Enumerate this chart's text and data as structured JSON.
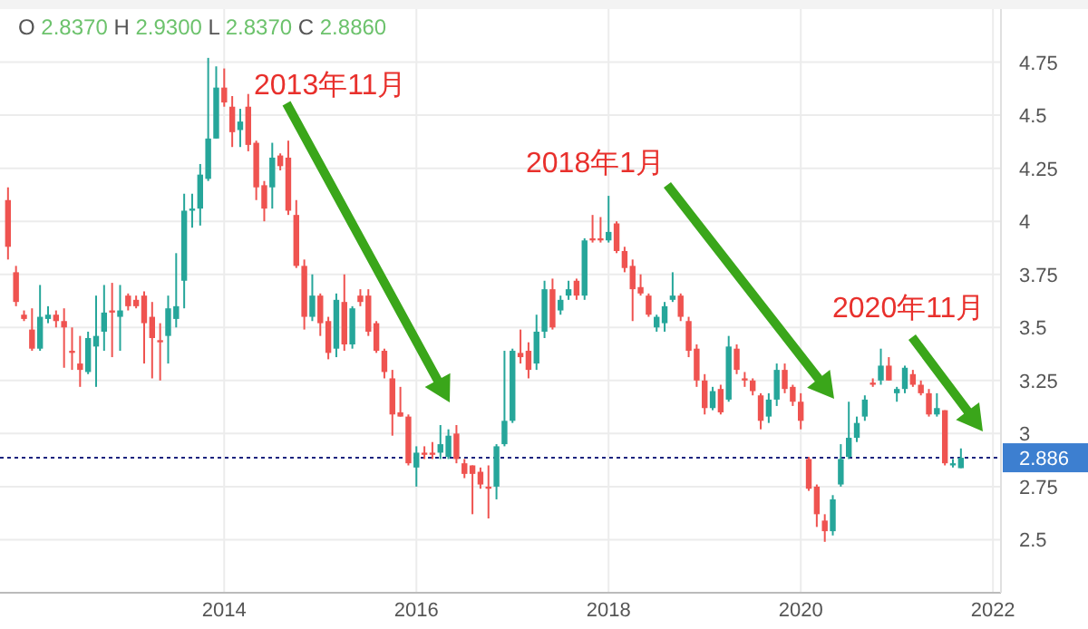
{
  "chart_data": {
    "type": "candlestick",
    "x": [
      "2011-10",
      "2011-11",
      "2011-12",
      "2012-01",
      "2012-02",
      "2012-03",
      "2012-04",
      "2012-05",
      "2012-06",
      "2012-07",
      "2012-08",
      "2012-09",
      "2012-10",
      "2012-11",
      "2012-12",
      "2013-01",
      "2013-02",
      "2013-03",
      "2013-04",
      "2013-05",
      "2013-06",
      "2013-07",
      "2013-08",
      "2013-09",
      "2013-10",
      "2013-11",
      "2013-12",
      "2014-01",
      "2014-02",
      "2014-03",
      "2014-04",
      "2014-05",
      "2014-06",
      "2014-07",
      "2014-08",
      "2014-09",
      "2014-10",
      "2014-11",
      "2014-12",
      "2015-01",
      "2015-02",
      "2015-03",
      "2015-04",
      "2015-05",
      "2015-06",
      "2015-07",
      "2015-08",
      "2015-09",
      "2015-10",
      "2015-11",
      "2015-12",
      "2016-01",
      "2016-02",
      "2016-03",
      "2016-04",
      "2016-05",
      "2016-06",
      "2016-07",
      "2016-08",
      "2016-09",
      "2016-10",
      "2016-11",
      "2016-12",
      "2017-01",
      "2017-02",
      "2017-03",
      "2017-04",
      "2017-05",
      "2017-06",
      "2017-07",
      "2017-08",
      "2017-09",
      "2017-10",
      "2017-11",
      "2017-12",
      "2018-01",
      "2018-02",
      "2018-03",
      "2018-04",
      "2018-05",
      "2018-06",
      "2018-07",
      "2018-08",
      "2018-09",
      "2018-10",
      "2018-11",
      "2018-12",
      "2019-01",
      "2019-02",
      "2019-03",
      "2019-04",
      "2019-05",
      "2019-06",
      "2019-07",
      "2019-08",
      "2019-09",
      "2019-10",
      "2019-11",
      "2019-12",
      "2020-01",
      "2020-02",
      "2020-03",
      "2020-04",
      "2020-05",
      "2020-06",
      "2020-07",
      "2020-08",
      "2020-09",
      "2020-10",
      "2020-11",
      "2020-12",
      "2021-01",
      "2021-02",
      "2021-03",
      "2021-04",
      "2021-05",
      "2021-06",
      "2021-07",
      "2021-08",
      "2021-09"
    ],
    "ohlc": [
      [
        4.1,
        4.16,
        3.82,
        3.88
      ],
      [
        3.76,
        3.79,
        3.6,
        3.62
      ],
      [
        3.56,
        3.58,
        3.53,
        3.54
      ],
      [
        3.49,
        3.59,
        3.39,
        3.4
      ],
      [
        3.4,
        3.7,
        3.39,
        3.55
      ],
      [
        3.54,
        3.6,
        3.52,
        3.56
      ],
      [
        3.56,
        3.58,
        3.5,
        3.53
      ],
      [
        3.53,
        3.59,
        3.31,
        3.5
      ],
      [
        3.39,
        3.5,
        3.3,
        3.38
      ],
      [
        3.33,
        3.46,
        3.22,
        3.3
      ],
      [
        3.29,
        3.48,
        3.28,
        3.45
      ],
      [
        3.41,
        3.65,
        3.22,
        3.46
      ],
      [
        3.48,
        3.7,
        3.39,
        3.57
      ],
      [
        3.58,
        3.71,
        3.36,
        3.57
      ],
      [
        3.55,
        3.7,
        3.39,
        3.58
      ],
      [
        3.65,
        3.66,
        3.58,
        3.6
      ],
      [
        3.63,
        3.65,
        3.59,
        3.6
      ],
      [
        3.65,
        3.67,
        3.33,
        3.52
      ],
      [
        3.55,
        3.62,
        3.26,
        3.45
      ],
      [
        3.44,
        3.52,
        3.25,
        3.43
      ],
      [
        3.46,
        3.65,
        3.33,
        3.59
      ],
      [
        3.54,
        3.85,
        3.5,
        3.6
      ],
      [
        3.72,
        4.13,
        3.59,
        4.05
      ],
      [
        4.05,
        4.13,
        3.97,
        4.06
      ],
      [
        4.06,
        4.27,
        3.98,
        4.22
      ],
      [
        4.2,
        4.77,
        4.19,
        4.39
      ],
      [
        4.39,
        4.73,
        4.39,
        4.63
      ],
      [
        4.63,
        4.72,
        4.54,
        4.56
      ],
      [
        4.54,
        4.59,
        4.35,
        4.42
      ],
      [
        4.43,
        4.53,
        4.35,
        4.47
      ],
      [
        4.54,
        4.6,
        4.33,
        4.36
      ],
      [
        4.37,
        4.38,
        4.1,
        4.16
      ],
      [
        4.17,
        4.19,
        4.0,
        4.06
      ],
      [
        4.16,
        4.37,
        4.06,
        4.3
      ],
      [
        4.31,
        4.32,
        4.24,
        4.26
      ],
      [
        4.3,
        4.38,
        4.03,
        4.05
      ],
      [
        4.03,
        4.1,
        3.78,
        3.79
      ],
      [
        3.79,
        3.82,
        3.49,
        3.55
      ],
      [
        3.55,
        3.75,
        3.53,
        3.65
      ],
      [
        3.65,
        3.66,
        3.46,
        3.52
      ],
      [
        3.53,
        3.55,
        3.35,
        3.38
      ],
      [
        3.4,
        3.66,
        3.36,
        3.63
      ],
      [
        3.62,
        3.75,
        3.39,
        3.42
      ],
      [
        3.42,
        3.6,
        3.4,
        3.59
      ],
      [
        3.65,
        3.68,
        3.6,
        3.62
      ],
      [
        3.65,
        3.68,
        3.46,
        3.48
      ],
      [
        3.52,
        3.53,
        3.38,
        3.39
      ],
      [
        3.39,
        3.4,
        3.26,
        3.29
      ],
      [
        3.26,
        3.3,
        2.99,
        3.09
      ],
      [
        3.1,
        3.22,
        3.08,
        3.08
      ],
      [
        3.08,
        3.09,
        2.85,
        2.86
      ],
      [
        2.84,
        2.94,
        2.75,
        2.91
      ],
      [
        2.91,
        2.94,
        2.88,
        2.9
      ],
      [
        2.91,
        2.96,
        2.88,
        2.9
      ],
      [
        2.91,
        3.04,
        2.88,
        2.95
      ],
      [
        2.89,
        3.02,
        2.88,
        2.99
      ],
      [
        3.0,
        3.04,
        2.86,
        2.88
      ],
      [
        2.86,
        2.88,
        2.79,
        2.81
      ],
      [
        2.85,
        2.85,
        2.62,
        2.81
      ],
      [
        2.82,
        2.84,
        2.74,
        2.76
      ],
      [
        2.75,
        2.85,
        2.6,
        2.74
      ],
      [
        2.75,
        2.95,
        2.69,
        2.94
      ],
      [
        2.95,
        3.39,
        2.94,
        3.06
      ],
      [
        3.06,
        3.4,
        3.05,
        3.39
      ],
      [
        3.38,
        3.49,
        3.33,
        3.36
      ],
      [
        3.39,
        3.43,
        3.26,
        3.3
      ],
      [
        3.33,
        3.56,
        3.3,
        3.48
      ],
      [
        3.48,
        3.72,
        3.45,
        3.68
      ],
      [
        3.68,
        3.73,
        3.49,
        3.5
      ],
      [
        3.58,
        3.65,
        3.56,
        3.63
      ],
      [
        3.65,
        3.72,
        3.63,
        3.68
      ],
      [
        3.72,
        3.73,
        3.63,
        3.65
      ],
      [
        3.65,
        3.92,
        3.63,
        3.91
      ],
      [
        3.92,
        4.03,
        3.9,
        3.91
      ],
      [
        3.92,
        4.02,
        3.9,
        3.91
      ],
      [
        3.91,
        4.12,
        3.9,
        3.95
      ],
      [
        3.99,
        4.0,
        3.85,
        3.86
      ],
      [
        3.86,
        3.88,
        3.76,
        3.78
      ],
      [
        3.79,
        3.82,
        3.53,
        3.68
      ],
      [
        3.69,
        3.75,
        3.65,
        3.66
      ],
      [
        3.65,
        3.66,
        3.55,
        3.56
      ],
      [
        3.5,
        3.56,
        3.48,
        3.55
      ],
      [
        3.52,
        3.62,
        3.48,
        3.6
      ],
      [
        3.63,
        3.76,
        3.62,
        3.65
      ],
      [
        3.65,
        3.66,
        3.53,
        3.55
      ],
      [
        3.53,
        3.55,
        3.36,
        3.39
      ],
      [
        3.4,
        3.42,
        3.22,
        3.25
      ],
      [
        3.25,
        3.28,
        3.09,
        3.12
      ],
      [
        3.12,
        3.22,
        3.11,
        3.2
      ],
      [
        3.21,
        3.23,
        3.09,
        3.1
      ],
      [
        3.16,
        3.46,
        3.15,
        3.41
      ],
      [
        3.4,
        3.42,
        3.28,
        3.3
      ],
      [
        3.26,
        3.29,
        3.22,
        3.25
      ],
      [
        3.25,
        3.26,
        3.18,
        3.2
      ],
      [
        3.18,
        3.19,
        3.02,
        3.06
      ],
      [
        3.08,
        3.19,
        3.05,
        3.16
      ],
      [
        3.16,
        3.33,
        3.13,
        3.3
      ],
      [
        3.3,
        3.33,
        3.19,
        3.21
      ],
      [
        3.22,
        3.23,
        3.13,
        3.15
      ],
      [
        3.15,
        3.19,
        3.02,
        3.06
      ],
      [
        2.88,
        2.89,
        2.73,
        2.74
      ],
      [
        2.75,
        2.76,
        2.56,
        2.62
      ],
      [
        2.59,
        2.62,
        2.49,
        2.54
      ],
      [
        2.54,
        2.71,
        2.52,
        2.69
      ],
      [
        2.76,
        2.95,
        2.75,
        2.88
      ],
      [
        2.89,
        3.15,
        2.88,
        2.98
      ],
      [
        2.98,
        3.08,
        2.96,
        3.05
      ],
      [
        3.08,
        3.18,
        3.06,
        3.16
      ],
      [
        3.24,
        3.26,
        3.22,
        3.23
      ],
      [
        3.25,
        3.4,
        3.23,
        3.32
      ],
      [
        3.32,
        3.36,
        3.25,
        3.25
      ],
      [
        3.19,
        3.22,
        3.15,
        3.21
      ],
      [
        3.21,
        3.32,
        3.19,
        3.31
      ],
      [
        3.28,
        3.3,
        3.22,
        3.23
      ],
      [
        3.23,
        3.25,
        3.18,
        3.19
      ],
      [
        3.19,
        3.21,
        3.08,
        3.09
      ],
      [
        3.09,
        3.19,
        3.08,
        3.12
      ],
      [
        3.11,
        3.11,
        2.85,
        2.86
      ],
      [
        2.85,
        2.88,
        2.84,
        2.86
      ],
      [
        2.837,
        2.93,
        2.837,
        2.886
      ]
    ],
    "xlim": [
      "2011-09",
      "2022-02"
    ],
    "xticks": [
      "2014",
      "2016",
      "2018",
      "2020",
      "2022"
    ],
    "ylim": [
      2.25,
      5.0
    ],
    "yticks": [
      2.5,
      2.75,
      3,
      3.25,
      3.5,
      3.75,
      4,
      4.25,
      4.5,
      4.75
    ],
    "grid": true,
    "ref_lines": [
      {
        "axis": "y",
        "value": 2.886,
        "label": "2.886",
        "color": "#1a237e",
        "line_style": "dotted"
      }
    ],
    "annotations": [
      "O 2.8370 H 2.9300 L 2.8370 C 2.8860",
      "2013年11月",
      "2018年1月",
      "2020年11月"
    ]
  }
}
